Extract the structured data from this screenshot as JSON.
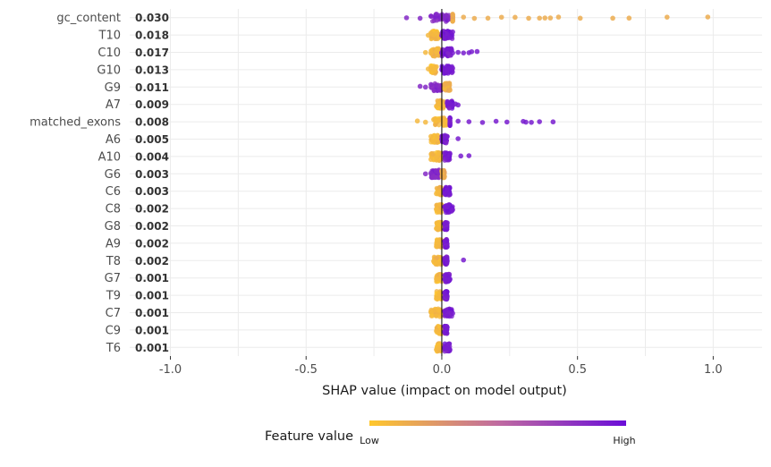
{
  "chart_data": {
    "type": "scatter",
    "subtype": "shap-beeswarm",
    "xlabel": "SHAP value (impact on model output)",
    "xlim": [
      -1.15,
      1.18
    ],
    "x_ticks": [
      -1.0,
      -0.5,
      0.0,
      0.5,
      1.0
    ],
    "x_tick_labels": [
      "-1.0",
      "-0.5",
      "0.0",
      "0.5",
      "1.0"
    ],
    "grid": true,
    "legend": {
      "title": "Feature value",
      "low_label": "Low",
      "high_label": "High",
      "placement": "bottom",
      "low_color": "#FFC72C",
      "high_color": "#6A0DD8"
    },
    "features": [
      {
        "name": "gc_content",
        "importance": "0.030",
        "low_x": [
          -0.13,
          -0.08,
          -0.04,
          -0.02,
          0.0,
          0.01,
          0.03
        ],
        "high_x": [
          0.04,
          0.08,
          0.12,
          0.17,
          0.22,
          0.27,
          0.32,
          0.36,
          0.38,
          0.4,
          0.43,
          0.51,
          0.63,
          0.69,
          0.83,
          0.98
        ],
        "high_is": "low"
      },
      {
        "name": "T10",
        "importance": "0.018",
        "low_x": [
          -0.05,
          -0.04,
          -0.03,
          -0.02,
          -0.01
        ],
        "high_x": [
          0.0,
          0.01,
          0.02,
          0.03,
          0.04
        ],
        "high_is": "high"
      },
      {
        "name": "C10",
        "importance": "0.017",
        "low_x": [
          -0.06,
          -0.04,
          -0.02,
          -0.01
        ],
        "high_x": [
          0.0,
          0.02,
          0.04,
          0.06,
          0.08,
          0.1,
          0.11,
          0.13
        ],
        "high_is": "high"
      },
      {
        "name": "G10",
        "importance": "0.013",
        "low_x": [
          -0.05,
          -0.04,
          -0.03,
          -0.02
        ],
        "high_x": [
          0.0,
          0.01,
          0.02,
          0.03,
          0.04
        ],
        "high_is": "high"
      },
      {
        "name": "G9",
        "importance": "0.011",
        "low_x": [
          -0.08,
          -0.06,
          -0.04,
          -0.02,
          -0.01,
          0.0
        ],
        "high_x": [
          0.01,
          0.02,
          0.03
        ],
        "high_is": "low"
      },
      {
        "name": "A7",
        "importance": "0.009",
        "low_x": [
          -0.02,
          -0.01,
          0.0,
          0.01
        ],
        "high_x": [
          0.02,
          0.03,
          0.04,
          0.05,
          0.06
        ],
        "high_is": "high"
      },
      {
        "name": "matched_exons",
        "importance": "0.008",
        "low_x": [
          -0.09,
          -0.06,
          -0.03,
          -0.01,
          0.0,
          0.02
        ],
        "high_x": [
          0.03,
          0.06,
          0.1,
          0.15,
          0.2,
          0.24,
          0.3,
          0.31,
          0.33,
          0.36,
          0.41
        ],
        "high_is": "high"
      },
      {
        "name": "A6",
        "importance": "0.005",
        "low_x": [
          -0.04,
          -0.03,
          -0.02,
          -0.01
        ],
        "high_x": [
          0.0,
          0.01,
          0.02,
          0.06
        ],
        "high_is": "high"
      },
      {
        "name": "A10",
        "importance": "0.004",
        "low_x": [
          -0.04,
          -0.02,
          -0.01,
          0.0
        ],
        "high_x": [
          0.01,
          0.02,
          0.03,
          0.07,
          0.1
        ],
        "high_is": "high"
      },
      {
        "name": "G6",
        "importance": "0.003",
        "low_x": [
          -0.06,
          -0.04,
          -0.02,
          -0.01
        ],
        "high_x": [
          0.0,
          0.01
        ],
        "high_is": "low"
      },
      {
        "name": "C6",
        "importance": "0.003",
        "low_x": [
          -0.02,
          -0.01,
          0.0
        ],
        "high_x": [
          0.01,
          0.02,
          0.03
        ],
        "high_is": "high"
      },
      {
        "name": "C8",
        "importance": "0.002",
        "low_x": [
          -0.02,
          -0.01,
          0.0
        ],
        "high_x": [
          0.01,
          0.02,
          0.04
        ],
        "high_is": "high"
      },
      {
        "name": "G8",
        "importance": "0.002",
        "low_x": [
          -0.02,
          -0.01,
          0.0
        ],
        "high_x": [
          0.01,
          0.02
        ],
        "high_is": "high"
      },
      {
        "name": "A9",
        "importance": "0.002",
        "low_x": [
          -0.02,
          -0.01,
          0.0
        ],
        "high_x": [
          0.01,
          0.02
        ],
        "high_is": "high"
      },
      {
        "name": "T8",
        "importance": "0.002",
        "low_x": [
          -0.03,
          -0.01,
          0.0
        ],
        "high_x": [
          0.01,
          0.02,
          0.08
        ],
        "high_is": "high"
      },
      {
        "name": "G7",
        "importance": "0.001",
        "low_x": [
          -0.02,
          -0.01,
          0.0
        ],
        "high_x": [
          0.01,
          0.02,
          0.03
        ],
        "high_is": "high"
      },
      {
        "name": "T9",
        "importance": "0.001",
        "low_x": [
          -0.02,
          -0.01,
          0.0
        ],
        "high_x": [
          0.01,
          0.02
        ],
        "high_is": "high"
      },
      {
        "name": "C7",
        "importance": "0.001",
        "low_x": [
          -0.04,
          -0.02,
          -0.01,
          0.0
        ],
        "high_x": [
          0.01,
          0.02,
          0.04
        ],
        "high_is": "high"
      },
      {
        "name": "C9",
        "importance": "0.001",
        "low_x": [
          -0.02,
          -0.01,
          0.0
        ],
        "high_x": [
          0.01,
          0.02
        ],
        "high_is": "high"
      },
      {
        "name": "T6",
        "importance": "0.001",
        "low_x": [
          -0.02,
          -0.01,
          0.0
        ],
        "high_x": [
          0.01,
          0.02,
          0.03
        ],
        "high_is": "high"
      }
    ]
  }
}
